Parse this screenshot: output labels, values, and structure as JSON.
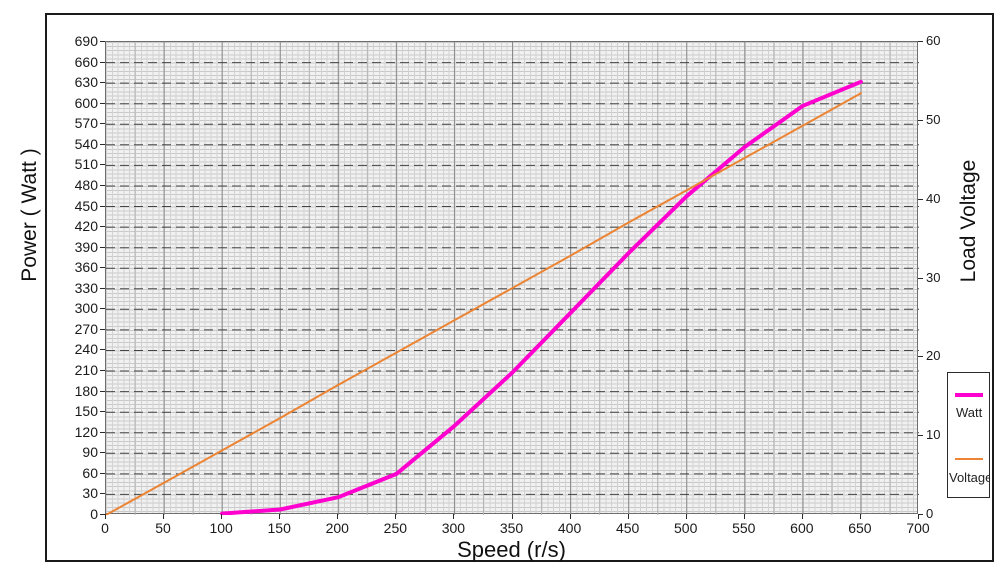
{
  "titles": {
    "x_axis": "Speed (r/s)",
    "y_left_axis": "Power ( Watt )",
    "y_right_axis": "Load Voltage"
  },
  "axes": {
    "x": {
      "min": 0,
      "max": 700,
      "ticks": [
        0,
        50,
        100,
        150,
        200,
        250,
        300,
        350,
        400,
        450,
        500,
        550,
        600,
        650,
        700
      ]
    },
    "y_left": {
      "min": 0,
      "max": 690,
      "ticks": [
        0,
        30,
        60,
        90,
        120,
        150,
        180,
        210,
        240,
        270,
        300,
        330,
        360,
        390,
        420,
        450,
        480,
        510,
        540,
        570,
        600,
        630,
        660,
        690
      ]
    },
    "y_right": {
      "min": 0,
      "max": 60,
      "ticks": [
        0,
        10,
        20,
        30,
        40,
        50,
        60
      ]
    }
  },
  "legend": {
    "items": [
      {
        "label": "Watt",
        "color": "#ff00cf"
      },
      {
        "label": "Voltage",
        "color": "#ec8433"
      }
    ]
  },
  "colors": {
    "watt_line": "#ff00cf",
    "voltage_line": "#ec8433",
    "major_h_grid": "#2b2b2b",
    "major_v_grid": "#8a8a8a",
    "medium_v_grid": "#b5b5b5"
  },
  "chart_data": {
    "type": "line",
    "title": "",
    "xlabel": "Speed (r/s)",
    "ylabel_left": "Power ( Watt )",
    "ylabel_right": "Load Voltage",
    "x_range": [
      0,
      700
    ],
    "y_left_range": [
      0,
      690
    ],
    "y_right_range": [
      0,
      60
    ],
    "grid": "fine graph paper with 30 W major horizontal lines and 50 r/s major vertical lines",
    "legend_position": "right-inside-frame",
    "series": [
      {
        "name": "Watt",
        "axis": "left",
        "color": "#ff00cf",
        "width": 4,
        "points": [
          [
            100,
            2
          ],
          [
            150,
            8
          ],
          [
            200,
            26
          ],
          [
            250,
            60
          ],
          [
            300,
            130
          ],
          [
            350,
            208
          ],
          [
            400,
            295
          ],
          [
            450,
            382
          ],
          [
            500,
            465
          ],
          [
            550,
            537
          ],
          [
            600,
            597
          ],
          [
            650,
            632
          ]
        ]
      },
      {
        "name": "Voltage",
        "axis": "right",
        "color": "#ec8433",
        "width": 2,
        "points": [
          [
            0,
            0
          ],
          [
            50,
            4.1
          ],
          [
            100,
            8.2
          ],
          [
            150,
            12.3
          ],
          [
            200,
            16.5
          ],
          [
            250,
            20.6
          ],
          [
            300,
            24.7
          ],
          [
            350,
            28.8
          ],
          [
            400,
            32.9
          ],
          [
            450,
            37.1
          ],
          [
            500,
            41.2
          ],
          [
            550,
            45.3
          ],
          [
            600,
            49.4
          ],
          [
            650,
            53.5
          ]
        ]
      }
    ]
  }
}
